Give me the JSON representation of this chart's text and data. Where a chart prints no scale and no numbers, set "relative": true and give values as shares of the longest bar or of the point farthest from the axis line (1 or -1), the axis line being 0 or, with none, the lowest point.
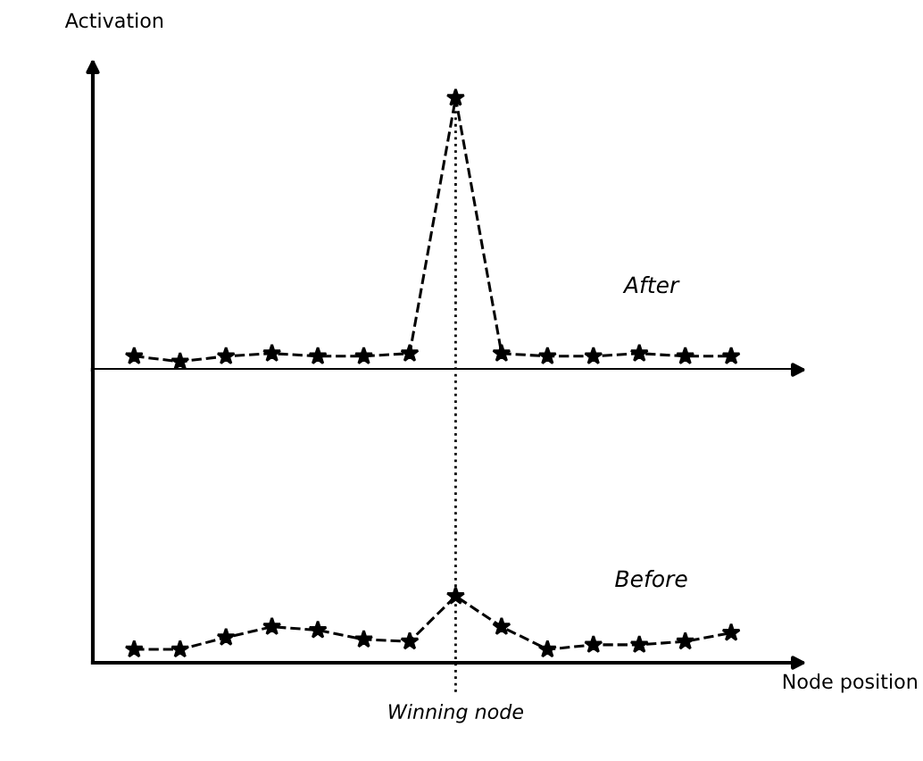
{
  "chart_data": [
    {
      "type": "line",
      "relative": true,
      "ylabel": "Activation",
      "categories": [
        null,
        null,
        null,
        null,
        null,
        null,
        null,
        null,
        null,
        null,
        null,
        null,
        null,
        null
      ],
      "marker": "star",
      "line_style": "dashed",
      "legend": false,
      "series": [
        {
          "name": "After",
          "color": "#000000",
          "values": [
            0.05,
            0.03,
            0.05,
            0.06,
            0.05,
            0.05,
            0.06,
            1,
            0.06,
            0.05,
            0.05,
            0.06,
            0.05,
            0.05
          ]
        }
      ]
    },
    {
      "type": "line",
      "relative": true,
      "xlabel": "Node position",
      "categories": [
        null,
        null,
        null,
        null,
        null,
        null,
        null,
        null,
        null,
        null,
        null,
        null,
        null,
        null
      ],
      "marker": "star",
      "line_style": "dashed",
      "legend": false,
      "series": [
        {
          "name": "Before",
          "color": "#000000",
          "values": [
            0.2,
            0.2,
            0.38,
            0.54,
            0.49,
            0.35,
            0.32,
            1,
            0.54,
            0.2,
            0.27,
            0.27,
            0.32,
            0.45
          ]
        }
      ],
      "annotations": [
        "Winning node"
      ]
    }
  ]
}
